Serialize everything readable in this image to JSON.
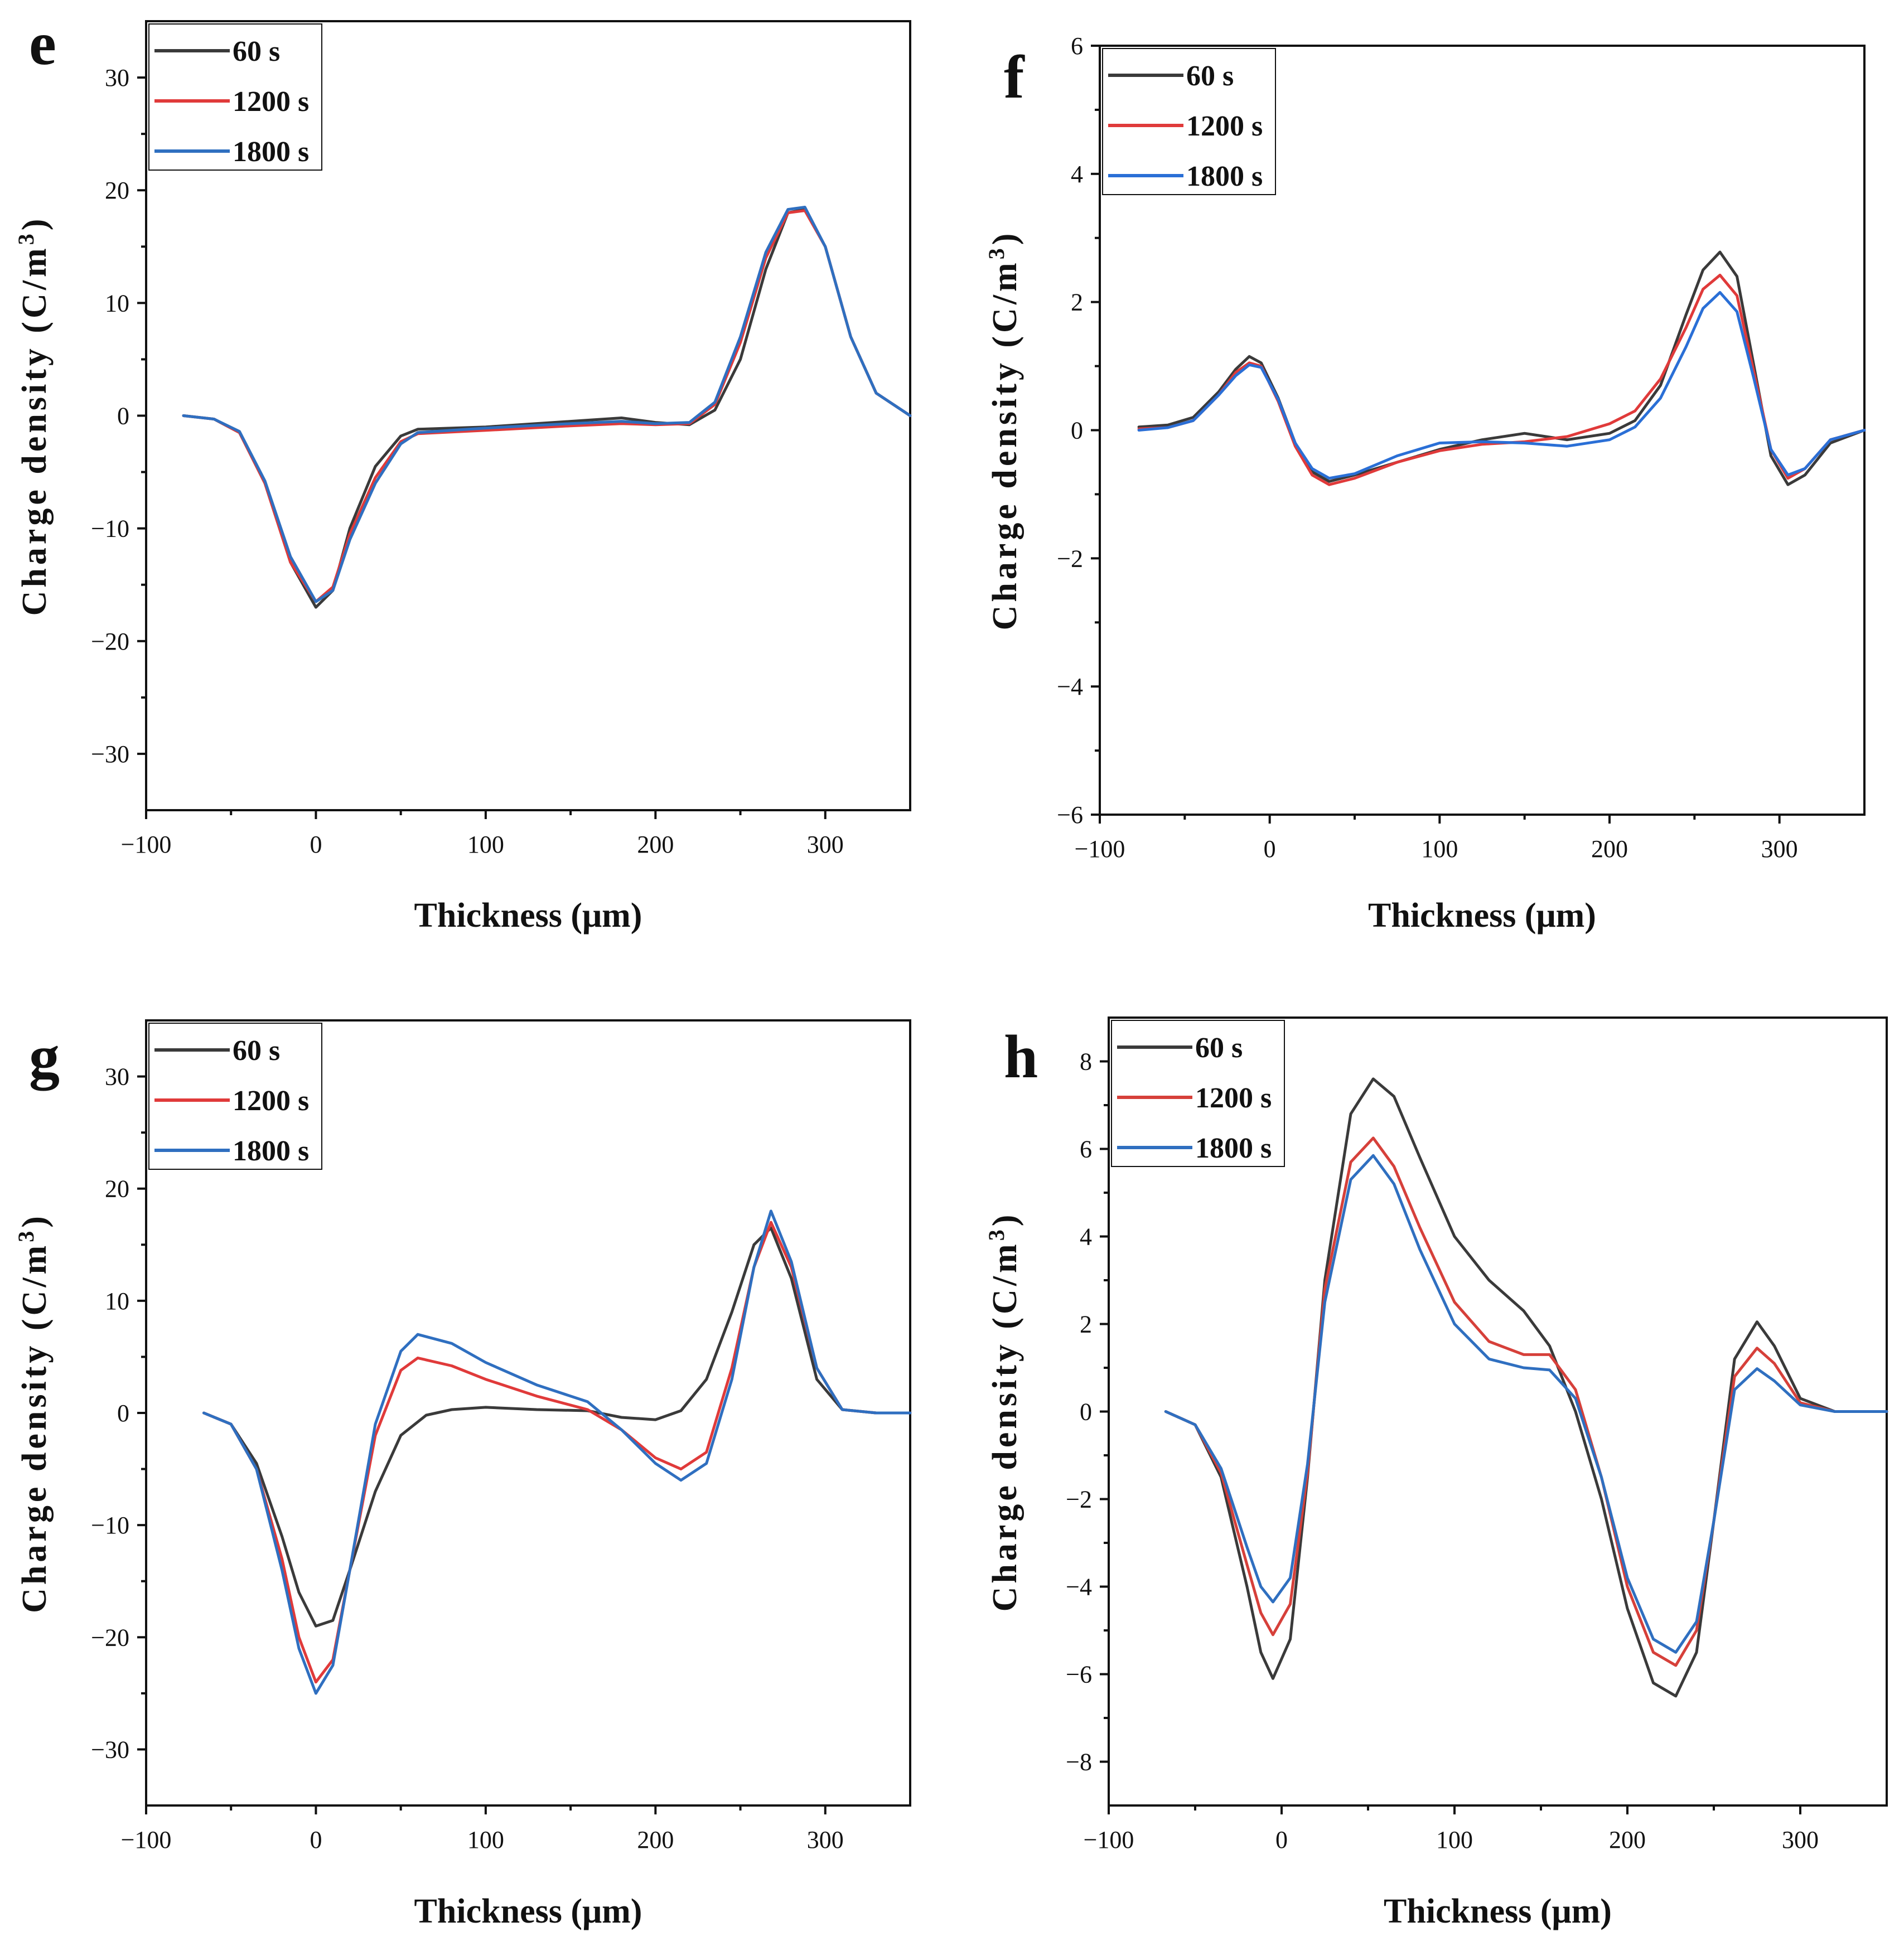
{
  "chart_data": [
    {
      "panel": "e",
      "type": "line",
      "xlabel": "Thickness (μm)",
      "ylabel": "Charge density (C/m",
      "ylabel_sup": "3",
      "ylabel_close": ")",
      "xlim": [
        -100,
        350
      ],
      "ylim": [
        -35,
        35
      ],
      "xticks": [
        -100,
        0,
        100,
        200,
        300
      ],
      "xticklabels": [
        "−100",
        "0",
        "100",
        "200",
        "300"
      ],
      "yticks": [
        -30,
        -20,
        -10,
        0,
        10,
        20,
        30
      ],
      "yticklabels": [
        "−30",
        "−20",
        "−10",
        "0",
        "10",
        "20",
        "30"
      ],
      "legend": "top-left",
      "series": [
        {
          "name": "60 s",
          "color": "#3a3a3a",
          "x": [
            -78,
            -60,
            -45,
            -30,
            -15,
            0,
            10,
            20,
            35,
            50,
            60,
            100,
            150,
            180,
            200,
            220,
            235,
            250,
            265,
            278,
            288,
            300,
            315,
            330,
            350
          ],
          "y": [
            0,
            -0.3,
            -1.5,
            -6,
            -13,
            -17,
            -15.5,
            -10,
            -4.5,
            -1.8,
            -1.2,
            -1,
            -0.5,
            -0.2,
            -0.6,
            -0.8,
            0.5,
            5,
            13,
            18,
            18.3,
            15,
            7,
            2,
            0
          ]
        },
        {
          "name": "1200 s",
          "color": "#e03a3a",
          "x": [
            -78,
            -60,
            -45,
            -30,
            -15,
            0,
            10,
            20,
            35,
            50,
            60,
            100,
            150,
            180,
            200,
            220,
            235,
            250,
            265,
            278,
            288,
            300,
            315,
            330,
            350
          ],
          "y": [
            0,
            -0.3,
            -1.5,
            -6,
            -13,
            -16.5,
            -15.2,
            -10.5,
            -5.5,
            -2.3,
            -1.6,
            -1.3,
            -0.9,
            -0.7,
            -0.8,
            -0.7,
            1,
            6.5,
            14,
            18,
            18.2,
            15,
            7,
            2,
            0
          ]
        },
        {
          "name": "1800 s",
          "color": "#2f6fc0",
          "x": [
            -78,
            -60,
            -45,
            -30,
            -15,
            0,
            10,
            20,
            35,
            50,
            60,
            100,
            150,
            180,
            200,
            220,
            235,
            250,
            265,
            278,
            288,
            300,
            315,
            330,
            350
          ],
          "y": [
            0,
            -0.3,
            -1.4,
            -5.8,
            -12.5,
            -16.5,
            -15.5,
            -11,
            -6,
            -2.5,
            -1.5,
            -1.1,
            -0.7,
            -0.5,
            -0.7,
            -0.6,
            1.2,
            7,
            14.5,
            18.3,
            18.5,
            15,
            7,
            2,
            0
          ]
        }
      ]
    },
    {
      "panel": "f",
      "type": "line",
      "xlabel": "Thickness (μm)",
      "ylabel": "Charge density (C/m",
      "ylabel_sup": "3",
      "ylabel_close": ")",
      "xlim": [
        -100,
        350
      ],
      "ylim": [
        -6,
        6
      ],
      "xticks": [
        -100,
        0,
        100,
        200,
        300
      ],
      "xticklabels": [
        "−100",
        "0",
        "100",
        "200",
        "300"
      ],
      "yticks": [
        -6,
        -4,
        -2,
        0,
        2,
        4,
        6
      ],
      "yticklabels": [
        "−6",
        "−4",
        "−2",
        "0",
        "2",
        "4",
        "6"
      ],
      "legend": "top-left",
      "series": [
        {
          "name": "60 s",
          "color": "#3a3a3a",
          "x": [
            -77,
            -60,
            -45,
            -30,
            -20,
            -12,
            -5,
            5,
            15,
            25,
            35,
            50,
            75,
            100,
            125,
            150,
            175,
            200,
            215,
            230,
            245,
            255,
            265,
            275,
            285,
            295,
            305,
            315,
            330,
            350
          ],
          "y": [
            0.05,
            0.08,
            0.2,
            0.6,
            0.95,
            1.15,
            1.05,
            0.5,
            -0.2,
            -0.65,
            -0.8,
            -0.7,
            -0.5,
            -0.3,
            -0.15,
            -0.05,
            -0.15,
            -0.05,
            0.15,
            0.7,
            1.8,
            2.5,
            2.78,
            2.4,
            1,
            -0.4,
            -0.85,
            -0.7,
            -0.2,
            0
          ]
        },
        {
          "name": "1200 s",
          "color": "#e03a3a",
          "x": [
            -77,
            -60,
            -45,
            -30,
            -20,
            -12,
            -5,
            5,
            15,
            25,
            35,
            50,
            75,
            100,
            125,
            150,
            175,
            200,
            215,
            230,
            245,
            255,
            265,
            275,
            285,
            295,
            305,
            315,
            330,
            350
          ],
          "y": [
            0.02,
            0.04,
            0.15,
            0.55,
            0.9,
            1.05,
            1,
            0.45,
            -0.25,
            -0.7,
            -0.85,
            -0.75,
            -0.5,
            -0.32,
            -0.22,
            -0.18,
            -0.1,
            0.1,
            0.3,
            0.8,
            1.6,
            2.2,
            2.42,
            2.1,
            0.9,
            -0.3,
            -0.75,
            -0.6,
            -0.15,
            0
          ]
        },
        {
          "name": "1800 s",
          "color": "#2a6fd6",
          "x": [
            -77,
            -60,
            -45,
            -30,
            -20,
            -12,
            -5,
            5,
            15,
            25,
            35,
            50,
            75,
            100,
            125,
            150,
            175,
            200,
            215,
            230,
            245,
            255,
            265,
            275,
            285,
            295,
            305,
            315,
            330,
            350
          ],
          "y": [
            0,
            0.04,
            0.15,
            0.55,
            0.85,
            1.02,
            0.98,
            0.48,
            -0.2,
            -0.6,
            -0.75,
            -0.68,
            -0.4,
            -0.2,
            -0.18,
            -0.2,
            -0.25,
            -0.15,
            0.05,
            0.5,
            1.3,
            1.9,
            2.15,
            1.85,
            0.8,
            -0.3,
            -0.7,
            -0.6,
            -0.15,
            0
          ]
        }
      ]
    },
    {
      "panel": "g",
      "type": "line",
      "xlabel": "Thickness (μm)",
      "ylabel": "Charge density (C/m",
      "ylabel_sup": "3",
      "ylabel_close": ")",
      "xlim": [
        -100,
        350
      ],
      "ylim": [
        -35,
        35
      ],
      "xticks": [
        -100,
        0,
        100,
        200,
        300
      ],
      "xticklabels": [
        "−100",
        "0",
        "100",
        "200",
        "300"
      ],
      "yticks": [
        -30,
        -20,
        -10,
        0,
        10,
        20,
        30
      ],
      "yticklabels": [
        "−30",
        "−20",
        "−10",
        "0",
        "10",
        "20",
        "30"
      ],
      "legend": "top-left",
      "series": [
        {
          "name": "60 s",
          "color": "#3a3a3a",
          "x": [
            -66,
            -50,
            -35,
            -20,
            -10,
            0,
            10,
            20,
            35,
            50,
            65,
            80,
            100,
            130,
            160,
            180,
            200,
            215,
            230,
            245,
            258,
            268,
            280,
            295,
            310,
            330,
            350
          ],
          "y": [
            0,
            -1,
            -4.5,
            -11,
            -16,
            -19,
            -18.5,
            -14,
            -7,
            -2,
            -0.2,
            0.3,
            0.5,
            0.3,
            0.2,
            -0.4,
            -0.6,
            0.2,
            3,
            9,
            15,
            16.5,
            12,
            3,
            0.3,
            0,
            0
          ]
        },
        {
          "name": "1200 s",
          "color": "#e03a3a",
          "x": [
            -66,
            -50,
            -35,
            -20,
            -10,
            0,
            10,
            20,
            35,
            50,
            60,
            80,
            100,
            130,
            160,
            180,
            200,
            215,
            230,
            245,
            258,
            268,
            280,
            295,
            310,
            330,
            350
          ],
          "y": [
            0,
            -1,
            -5,
            -13,
            -20,
            -24,
            -22,
            -14,
            -2,
            3.8,
            4.9,
            4.2,
            3,
            1.5,
            0.3,
            -1.5,
            -4,
            -5,
            -3.5,
            4,
            13,
            17,
            13,
            4,
            0.3,
            0,
            0
          ]
        },
        {
          "name": "1800 s",
          "color": "#2f6fc0",
          "x": [
            -66,
            -50,
            -35,
            -20,
            -10,
            0,
            10,
            20,
            35,
            50,
            60,
            80,
            100,
            130,
            160,
            180,
            200,
            215,
            230,
            245,
            258,
            268,
            280,
            295,
            310,
            330,
            350
          ],
          "y": [
            0,
            -1,
            -5,
            -14,
            -21,
            -25,
            -22.5,
            -14,
            -1,
            5.5,
            7,
            6.2,
            4.5,
            2.5,
            1,
            -1.5,
            -4.5,
            -6,
            -4.5,
            3,
            13,
            18,
            13.5,
            4,
            0.3,
            0,
            0
          ]
        }
      ]
    },
    {
      "panel": "h",
      "type": "line",
      "xlabel": "Thickness (μm)",
      "ylabel": "Charge density (C/m",
      "ylabel_sup": "3",
      "ylabel_close": ")",
      "xlim": [
        -100,
        350
      ],
      "ylim": [
        -9,
        9
      ],
      "xticks": [
        -100,
        0,
        100,
        200,
        300
      ],
      "xticklabels": [
        "−100",
        "0",
        "100",
        "200",
        "300"
      ],
      "yticks": [
        -8,
        -6,
        -4,
        -2,
        0,
        2,
        4,
        6,
        8
      ],
      "yticklabels": [
        "−8",
        "−6",
        "−4",
        "−2",
        "0",
        "2",
        "4",
        "6",
        "8"
      ],
      "legend": "top-left",
      "series": [
        {
          "name": "60 s",
          "color": "#3a3a3a",
          "x": [
            -67,
            -50,
            -35,
            -20,
            -12,
            -5,
            5,
            15,
            25,
            40,
            53,
            65,
            80,
            100,
            120,
            140,
            155,
            170,
            185,
            200,
            215,
            228,
            240,
            250,
            262,
            275,
            285,
            300,
            320,
            350
          ],
          "y": [
            0,
            -0.3,
            -1.5,
            -4,
            -5.5,
            -6.1,
            -5.2,
            -1.5,
            3,
            6.8,
            7.6,
            7.2,
            5.8,
            4,
            3,
            2.3,
            1.5,
            0,
            -2,
            -4.5,
            -6.2,
            -6.5,
            -5.5,
            -2.5,
            1.2,
            2.05,
            1.5,
            0.3,
            0,
            0
          ]
        },
        {
          "name": "1200 s",
          "color": "#d6403a",
          "x": [
            -67,
            -50,
            -35,
            -20,
            -12,
            -5,
            5,
            15,
            25,
            40,
            53,
            65,
            80,
            100,
            120,
            140,
            155,
            170,
            185,
            200,
            215,
            228,
            240,
            250,
            262,
            275,
            285,
            300,
            320,
            350
          ],
          "y": [
            0,
            -0.3,
            -1.4,
            -3.5,
            -4.6,
            -5.1,
            -4.4,
            -1.4,
            2.8,
            5.7,
            6.25,
            5.6,
            4.2,
            2.5,
            1.6,
            1.3,
            1.3,
            0.5,
            -1.5,
            -4,
            -5.5,
            -5.8,
            -5,
            -2.5,
            0.8,
            1.45,
            1.1,
            0.2,
            0,
            0
          ]
        },
        {
          "name": "1800 s",
          "color": "#2f6fc0",
          "x": [
            -67,
            -50,
            -35,
            -20,
            -12,
            -5,
            5,
            15,
            25,
            40,
            53,
            65,
            80,
            100,
            120,
            140,
            155,
            170,
            185,
            200,
            215,
            228,
            240,
            250,
            262,
            275,
            285,
            300,
            320,
            350
          ],
          "y": [
            0,
            -0.3,
            -1.3,
            -3.1,
            -4,
            -4.35,
            -3.8,
            -1.2,
            2.5,
            5.3,
            5.85,
            5.2,
            3.7,
            2,
            1.2,
            1,
            0.95,
            0.3,
            -1.5,
            -3.8,
            -5.2,
            -5.5,
            -4.8,
            -2.5,
            0.5,
            0.98,
            0.7,
            0.15,
            0,
            0
          ]
        }
      ]
    }
  ]
}
